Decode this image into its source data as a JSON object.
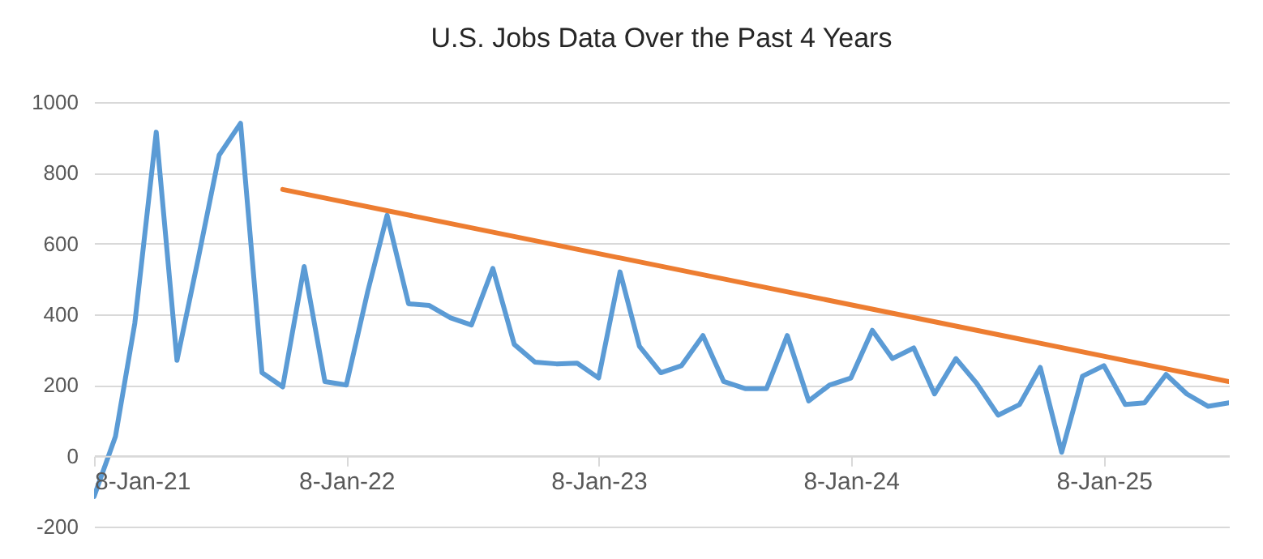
{
  "chart_data": {
    "type": "line",
    "title": "U.S. Jobs Data Over the Past 4 Years",
    "x": [
      "2021-01-08",
      "2021-02-08",
      "2021-03-08",
      "2021-04-08",
      "2021-05-08",
      "2021-06-08",
      "2021-07-08",
      "2021-08-08",
      "2021-09-08",
      "2021-10-08",
      "2021-11-08",
      "2021-12-08",
      "2022-01-08",
      "2022-02-08",
      "2022-03-08",
      "2022-04-08",
      "2022-05-08",
      "2022-06-08",
      "2022-07-08",
      "2022-08-08",
      "2022-09-08",
      "2022-10-08",
      "2022-11-08",
      "2022-12-08",
      "2023-01-08",
      "2023-02-08",
      "2023-03-08",
      "2023-04-08",
      "2023-05-08",
      "2023-06-08",
      "2023-07-08",
      "2023-08-08",
      "2023-09-08",
      "2023-10-08",
      "2023-11-08",
      "2023-12-08",
      "2024-01-08",
      "2024-02-08",
      "2024-03-08",
      "2024-04-08",
      "2024-05-08",
      "2024-06-08",
      "2024-07-08",
      "2024-08-08",
      "2024-09-08",
      "2024-10-08",
      "2024-11-08",
      "2024-12-08",
      "2025-01-08",
      "2025-02-08",
      "2025-03-08",
      "2025-04-08",
      "2025-05-08",
      "2025-06-08",
      "2025-07-08"
    ],
    "series": [
      {
        "color": "#5b9bd5",
        "values": [
          -115,
          55,
          375,
          915,
          270,
          560,
          850,
          940,
          235,
          195,
          535,
          210,
          200,
          465,
          680,
          430,
          425,
          390,
          370,
          530,
          315,
          265,
          260,
          262,
          220,
          520,
          310,
          235,
          255,
          340,
          210,
          190,
          190,
          340,
          155,
          200,
          220,
          355,
          275,
          305,
          175,
          275,
          205,
          115,
          145,
          250,
          10,
          225,
          255,
          145,
          150,
          230,
          175,
          140,
          150
        ]
      },
      {
        "color": "#ed7d31",
        "x": [
          "2021-10-08",
          "2025-07-08"
        ],
        "values": [
          753,
          210
        ]
      }
    ],
    "xlim": [
      "2021-01-08",
      "2025-07-08"
    ],
    "xticks": [
      {
        "value": "2021-01-08",
        "label": "8-Jan-21"
      },
      {
        "value": "2022-01-08",
        "label": "8-Jan-22"
      },
      {
        "value": "2023-01-08",
        "label": "8-Jan-23"
      },
      {
        "value": "2024-01-08",
        "label": "8-Jan-24"
      },
      {
        "value": "2025-01-08",
        "label": "8-Jan-25"
      }
    ],
    "ylim": [
      -200,
      1000
    ],
    "yticks": [
      -200,
      0,
      200,
      400,
      600,
      800,
      1000
    ],
    "grid": "y",
    "marker": "none",
    "line_style": "solid"
  }
}
